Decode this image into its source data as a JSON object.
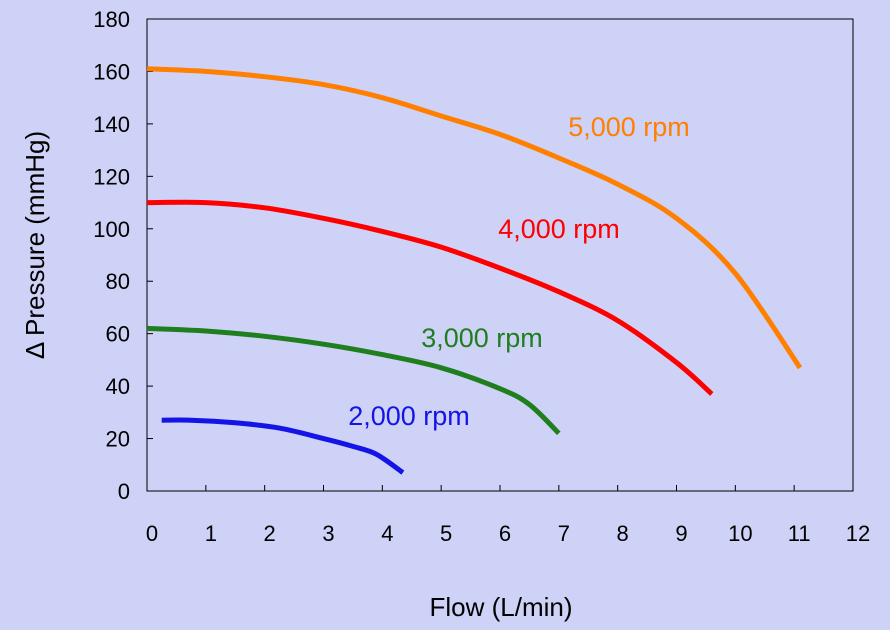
{
  "chart_data": {
    "type": "line",
    "title": "",
    "xlabel": "Flow (L/min)",
    "ylabel": "Δ Pressure (mmHg)",
    "xlim": [
      0,
      12
    ],
    "ylim": [
      0,
      180
    ],
    "x_ticks": [
      0,
      1,
      2,
      3,
      4,
      5,
      6,
      7,
      8,
      9,
      10,
      11,
      12
    ],
    "y_ticks": [
      0,
      20,
      40,
      60,
      80,
      100,
      120,
      140,
      160,
      180
    ],
    "grid": false,
    "legend": "none",
    "series": [
      {
        "name": "5,000 rpm",
        "color": "#ff7f00",
        "x": [
          0,
          1,
          2,
          3,
          4,
          5,
          6,
          7,
          8,
          9,
          10,
          11.1
        ],
        "y": [
          161,
          160,
          158,
          155,
          150,
          143,
          136,
          127,
          117,
          104,
          83,
          47
        ]
      },
      {
        "name": "4,000 rpm",
        "color": "#ff0000",
        "x": [
          0,
          1,
          2,
          3,
          4,
          5,
          6,
          7,
          8,
          9,
          9.6
        ],
        "y": [
          110,
          110,
          108,
          104,
          99,
          93,
          85,
          76,
          65,
          49,
          37
        ]
      },
      {
        "name": "3,000 rpm",
        "color": "#1f7f1f",
        "x": [
          0,
          1,
          2,
          3,
          4,
          5,
          6,
          6.5,
          7
        ],
        "y": [
          62,
          61,
          59,
          56,
          52,
          47,
          39,
          33,
          22
        ]
      },
      {
        "name": "2,000 rpm",
        "color": "#1414e6",
        "x": [
          0.25,
          0.75,
          1.5,
          2.25,
          3,
          3.5,
          3.9,
          4.35
        ],
        "y": [
          27,
          27,
          26,
          24,
          20,
          17,
          14,
          7
        ]
      }
    ]
  }
}
